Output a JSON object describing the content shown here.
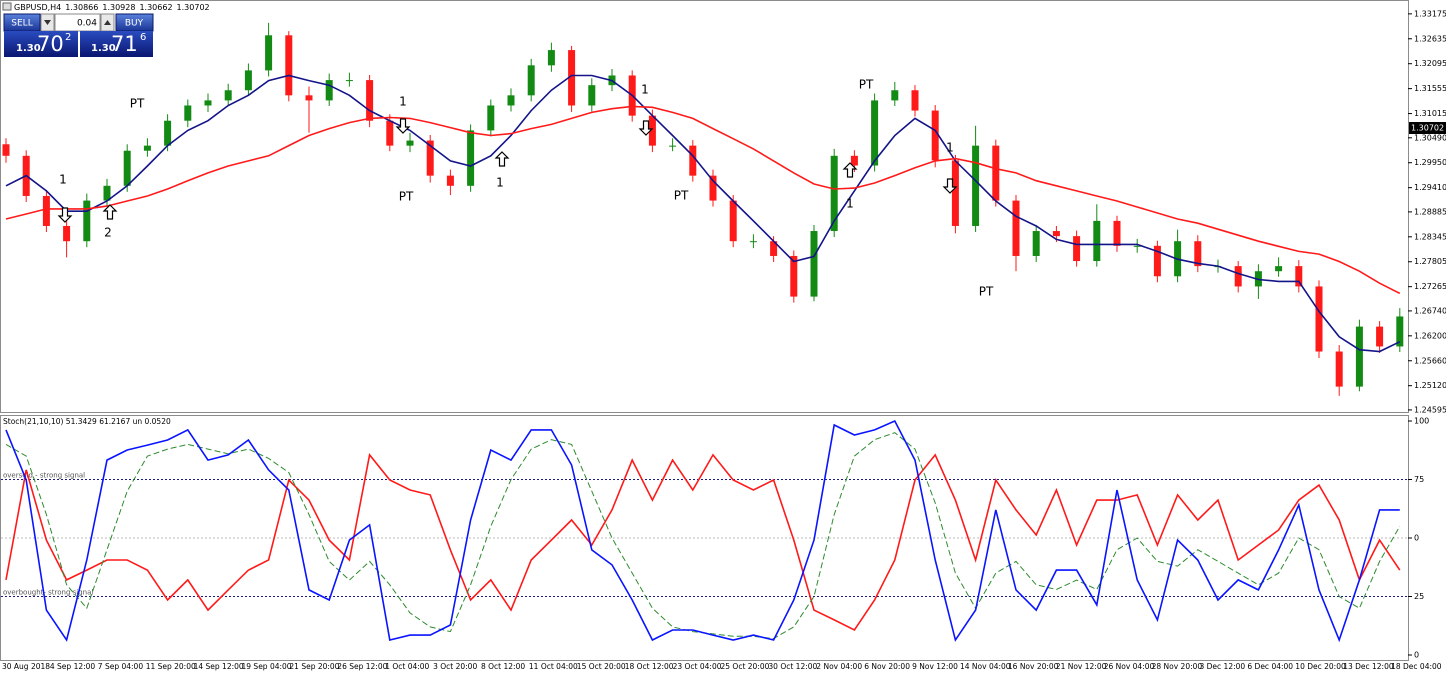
{
  "trade_panel": {
    "sell": "SELL",
    "buy": "BUY",
    "lot": "0.04",
    "sell_price": {
      "pre": "1.30",
      "big": "70",
      "sup": "2"
    },
    "buy_price": {
      "pre": "1.30",
      "big": "71",
      "sup": "6"
    }
  },
  "chart_data": [
    {
      "type": "candlestick",
      "title": "GBPUSD,H4",
      "header_values": [
        1.30866,
        1.30928,
        1.30662,
        1.30702
      ],
      "up_color": "#138a13",
      "down_color": "#ff1a1a",
      "open": [
        1.3035,
        1.301,
        1.2923,
        1.2858,
        1.2825,
        1.2913,
        1.2945,
        1.3021,
        1.3032,
        1.3086,
        1.3119,
        1.313,
        1.3152,
        1.3195,
        1.3271,
        1.3141,
        1.313,
        1.3174,
        1.3174,
        1.3086,
        1.3032,
        1.3043,
        1.2967,
        1.2945,
        1.3065,
        1.3119,
        1.3141,
        1.3206,
        1.3239,
        1.3119,
        1.3163,
        1.3184,
        1.3097,
        1.3032,
        1.3032,
        1.2967,
        1.2913,
        1.2825,
        1.2825,
        1.2793,
        1.2705,
        1.2847,
        1.301,
        1.2989,
        1.313,
        1.3152,
        1.3108,
        1.3,
        1.2858,
        1.3032,
        1.2913,
        1.2793,
        1.2847,
        1.2836,
        1.2782,
        1.2869,
        1.2815,
        1.2815,
        1.2749,
        1.2825,
        1.2771,
        1.2771,
        1.2727,
        1.276,
        1.2771,
        1.2727,
        1.2586,
        1.251,
        1.264,
        1.2597
      ],
      "high": [
        1.3048,
        1.3022,
        1.2936,
        1.287,
        1.2928,
        1.296,
        1.3035,
        1.3048,
        1.31,
        1.3132,
        1.3145,
        1.3166,
        1.321,
        1.3298,
        1.328,
        1.316,
        1.3188,
        1.319,
        1.3185,
        1.31,
        1.306,
        1.3055,
        1.298,
        1.3078,
        1.3132,
        1.3156,
        1.322,
        1.3255,
        1.3248,
        1.3178,
        1.3198,
        1.3195,
        1.311,
        1.3048,
        1.3044,
        1.298,
        1.2925,
        1.284,
        1.2836,
        1.2805,
        1.286,
        1.3025,
        1.3022,
        1.3145,
        1.317,
        1.3163,
        1.312,
        1.3012,
        1.3075,
        1.3045,
        1.2925,
        1.286,
        1.2858,
        1.2848,
        1.2905,
        1.288,
        1.283,
        1.2826,
        1.285,
        1.2838,
        1.2785,
        1.2782,
        1.2775,
        1.279,
        1.2784,
        1.274,
        1.26,
        1.2655,
        1.2652,
        1.268
      ],
      "low": [
        1.2995,
        1.291,
        1.2845,
        1.279,
        1.2812,
        1.29,
        1.2932,
        1.3008,
        1.302,
        1.3072,
        1.3105,
        1.3118,
        1.314,
        1.3182,
        1.3128,
        1.306,
        1.3118,
        1.316,
        1.3072,
        1.302,
        1.3018,
        1.2952,
        1.2925,
        1.2932,
        1.3052,
        1.3106,
        1.3128,
        1.3192,
        1.3105,
        1.3106,
        1.315,
        1.3084,
        1.3018,
        1.302,
        1.2954,
        1.29,
        1.2812,
        1.281,
        1.278,
        1.2692,
        1.2695,
        1.2834,
        1.2975,
        1.2976,
        1.3118,
        1.3095,
        1.2985,
        1.2842,
        1.2845,
        1.29,
        1.276,
        1.278,
        1.2823,
        1.277,
        1.277,
        1.2802,
        1.28,
        1.2736,
        1.2736,
        1.2758,
        1.2757,
        1.2714,
        1.27,
        1.2748,
        1.2714,
        1.2572,
        1.249,
        1.25,
        1.2583,
        1.2585
      ],
      "close": [
        1.301,
        1.2923,
        1.2858,
        1.2825,
        1.2913,
        1.2945,
        1.3021,
        1.3032,
        1.3086,
        1.3119,
        1.313,
        1.3152,
        1.3195,
        1.3271,
        1.3141,
        1.313,
        1.3174,
        1.3174,
        1.3086,
        1.3032,
        1.3043,
        1.2967,
        1.2945,
        1.3065,
        1.3119,
        1.3141,
        1.3206,
        1.3239,
        1.3119,
        1.3163,
        1.3184,
        1.3097,
        1.3032,
        1.3032,
        1.2967,
        1.2913,
        1.2825,
        1.2825,
        1.2793,
        1.2705,
        1.2847,
        1.301,
        1.2989,
        1.313,
        1.3152,
        1.3108,
        1.3,
        1.2858,
        1.3032,
        1.2913,
        1.2793,
        1.2847,
        1.2836,
        1.2782,
        1.2869,
        1.2815,
        1.2815,
        1.2749,
        1.2825,
        1.2771,
        1.2771,
        1.2727,
        1.276,
        1.2771,
        1.2727,
        1.2586,
        1.251,
        1.264,
        1.2597,
        1.2662
      ],
      "series": [
        {
          "color": "#14148a",
          "values": [
            1.2945,
            1.2967,
            1.2934,
            1.289,
            1.289,
            1.2912,
            1.2945,
            1.2988,
            1.3032,
            1.3065,
            1.3086,
            1.3119,
            1.3141,
            1.3173,
            1.3184,
            1.3173,
            1.3163,
            1.3141,
            1.3108,
            1.3086,
            1.3065,
            1.3032,
            1.2999,
            1.2988,
            1.301,
            1.3054,
            1.3108,
            1.3152,
            1.3184,
            1.3184,
            1.3173,
            1.3141,
            1.3097,
            1.3054,
            1.301,
            1.2956,
            1.2912,
            1.2869,
            1.2825,
            1.2781,
            1.2792,
            1.2869,
            1.2934,
            1.2999,
            1.3054,
            1.3091,
            1.3065,
            1.2999,
            1.2956,
            1.2912,
            1.2879,
            1.2858,
            1.2829,
            1.2818,
            1.2818,
            1.2818,
            1.2818,
            1.2803,
            1.2786,
            1.2777,
            1.2771,
            1.2755,
            1.2742,
            1.2738,
            1.2738,
            1.2673,
            1.2618,
            1.259,
            1.2586,
            1.2607
          ]
        },
        {
          "color": "#ff1a1a",
          "values": [
            1.2873,
            1.2884,
            1.2895,
            1.2895,
            1.2895,
            1.2901,
            1.2912,
            1.2923,
            1.2938,
            1.2956,
            1.2973,
            1.2988,
            1.2999,
            1.301,
            1.3032,
            1.3054,
            1.3069,
            1.3082,
            1.3091,
            1.3093,
            1.3091,
            1.3082,
            1.3071,
            1.306,
            1.3054,
            1.3058,
            1.3069,
            1.3078,
            1.3091,
            1.3104,
            1.3112,
            1.3117,
            1.3115,
            1.3104,
            1.3091,
            1.3069,
            1.3047,
            1.3025,
            1.2999,
            1.2973,
            1.2949,
            1.2938,
            1.294,
            1.2951,
            1.2967,
            1.2984,
            1.2999,
            1.3004,
            1.2995,
            1.2982,
            1.2973,
            1.2956,
            1.2945,
            1.2934,
            1.2923,
            1.2912,
            1.2899,
            1.2886,
            1.2873,
            1.2864,
            1.2851,
            1.2838,
            1.2825,
            1.2814,
            1.2803,
            1.2797,
            1.2781,
            1.276,
            1.2734,
            1.2712
          ]
        }
      ],
      "ylim": [
        1.2455,
        1.3341
      ],
      "yticks": [
        1.33175,
        1.32635,
        1.32095,
        1.31555,
        1.31015,
        {
          "value": 1.3049,
          "label": "1.30490"
        },
        {
          "value": 1.2995,
          "label": "1.29950"
        },
        {
          "value": 1.2941,
          "label": "1.29410"
        },
        1.28885,
        1.28345,
        1.27805,
        1.27265,
        {
          "value": 1.2674,
          "label": "1.26740"
        },
        {
          "value": 1.262,
          "label": "1.26200"
        },
        {
          "value": 1.2566,
          "label": "1.25660"
        },
        {
          "value": 1.2512,
          "label": "1.25120"
        },
        1.24595
      ],
      "current_price": 1.30702,
      "annotations": [
        "1",
        "2",
        "PT",
        "1",
        "PT",
        "1",
        "1",
        "PT",
        "PT",
        "1",
        "1",
        "PT"
      ]
    },
    {
      "type": "line",
      "title": "Stoch(21,10,10) 51.3429 61.2167 un 0.0520",
      "series": [
        {
          "color": "#ff1a1a",
          "values": [
            32.1,
            79.1,
            49.1,
            32.1,
            36.3,
            40.6,
            40.6,
            36.3,
            23.5,
            32.1,
            19.2,
            27.8,
            36.3,
            40.6,
            74.8,
            66.2,
            49.1,
            40.6,
            85.5,
            74.8,
            70.5,
            68.4,
            44.9,
            23.5,
            32.1,
            19.2,
            40.6,
            49.1,
            57.7,
            47.0,
            62.0,
            83.3,
            66.2,
            83.3,
            70.5,
            85.5,
            74.8,
            70.5,
            74.8,
            49.1,
            19.2,
            15.0,
            10.7,
            23.5,
            40.6,
            74.8,
            85.5,
            66.2,
            40.6,
            74.8,
            62.0,
            51.3,
            70.5,
            47.0,
            66.2,
            66.2,
            68.4,
            47.0,
            68.4,
            57.7,
            66.2,
            40.6,
            47.0,
            53.4,
            66.2,
            72.6,
            57.7,
            32.1,
            49.1,
            36.3
          ]
        },
        {
          "color": "#2e8b2e",
          "dashed": true,
          "values": [
            90,
            85,
            60,
            30,
            20,
            45,
            70,
            85,
            88,
            90,
            88,
            86,
            88,
            84,
            78,
            60,
            40,
            32,
            40,
            30,
            18,
            12,
            10,
            30,
            55,
            75,
            88,
            92,
            90,
            70,
            50,
            35,
            20,
            12,
            10,
            9,
            8,
            8,
            7,
            12,
            25,
            60,
            85,
            92,
            95,
            88,
            65,
            35,
            20,
            35,
            40,
            30,
            28,
            32,
            28,
            45,
            50,
            40,
            38,
            45,
            40,
            35,
            30,
            35,
            50,
            45,
            25,
            20,
            40,
            55
          ]
        },
        {
          "color": "#0a14ff",
          "values": [
            96.2,
            74.8,
            19.2,
            6.4,
            40.6,
            83.3,
            87.6,
            89.7,
            91.9,
            96.2,
            83.3,
            85.5,
            91.9,
            79.1,
            70.5,
            27.8,
            23.5,
            49.1,
            55.6,
            6.4,
            8.5,
            8.5,
            12.8,
            57.7,
            87.6,
            83.3,
            96.2,
            96.2,
            81.2,
            44.9,
            38.5,
            23.5,
            6.4,
            10.7,
            10.7,
            8.5,
            6.4,
            8.5,
            6.4,
            23.5,
            49.1,
            98.3,
            94.0,
            96.2,
            100.0,
            83.3,
            40.6,
            6.4,
            19.2,
            62.0,
            27.8,
            19.2,
            36.3,
            36.3,
            21.4,
            70.5,
            32.1,
            15.0,
            49.1,
            40.6,
            23.5,
            32.1,
            27.8,
            44.9,
            64.1,
            27.8,
            6.4,
            32.1,
            62.0,
            62.0
          ]
        }
      ],
      "ylim": [
        0,
        100
      ],
      "yticks": [
        100,
        75,
        {
          "value": 50,
          "label": "0"
        },
        25,
        0
      ],
      "levels": [
        {
          "value": 75,
          "label": "oversold - strong signal"
        },
        {
          "value": 25,
          "label": "overbought- strong signal"
        }
      ],
      "midline": 50,
      "xtick_labels": [
        "30 Aug 2018",
        "4 Sep 12:00",
        "7 Sep 04:00",
        "11 Sep 20:00",
        "14 Sep 12:00",
        "19 Sep 04:00",
        "21 Sep 20:00",
        "26 Sep 12:00",
        "1 Oct 04:00",
        "3 Oct 20:00",
        "8 Oct 12:00",
        "11 Oct 04:00",
        "15 Oct 20:00",
        "18 Oct 12:00",
        "23 Oct 04:00",
        "25 Oct 20:00",
        "30 Oct 12:00",
        "2 Nov 04:00",
        "6 Nov 20:00",
        "9 Nov 12:00",
        "14 Nov 04:00",
        "16 Nov 20:00",
        "21 Nov 12:00",
        "26 Nov 04:00",
        "28 Nov 20:00",
        "3 Dec 12:00",
        "6 Dec 04:00",
        "10 Dec 20:00",
        "13 Dec 12:00",
        "18 Dec 04:00"
      ]
    }
  ]
}
